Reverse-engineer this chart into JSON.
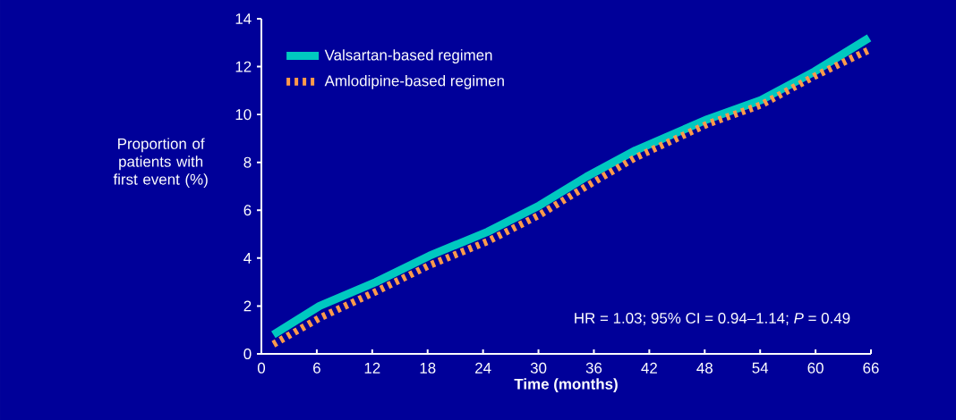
{
  "chart_data": {
    "type": "line",
    "xlabel": "Time (months)",
    "ylabel": "Proportion of patients with first event (%)",
    "x": [
      1.3,
      6.3,
      12.4,
      18.2,
      24.5,
      30.1,
      35.2,
      40.5,
      48.3,
      54.1,
      59.9,
      65.8
    ],
    "series": [
      {
        "name": "Valsartan-based regimen",
        "color": "#00c8c0",
        "line_style": "solid",
        "values": [
          0.8,
          2.0,
          3.0,
          4.1,
          5.1,
          6.2,
          7.4,
          8.5,
          9.8,
          10.6,
          11.8,
          13.2
        ]
      },
      {
        "name": "Amlodipine-based regimen",
        "color": "#ff9a4a",
        "line_style": "dashed",
        "values": [
          0.4,
          1.5,
          2.6,
          3.7,
          4.7,
          5.8,
          7.0,
          8.2,
          9.6,
          10.4,
          11.6,
          12.7
        ]
      }
    ],
    "xlim": [
      0,
      66
    ],
    "xticks": [
      0,
      6,
      12,
      18,
      24,
      30,
      36,
      42,
      48,
      54,
      60,
      66
    ],
    "ylim": [
      0,
      14
    ],
    "yticks": [
      0,
      2,
      4,
      6,
      8,
      10,
      12,
      14
    ],
    "annotations": [
      "HR = 1.03; 95% CI = 0.94–1.14; *P* = 0.49"
    ],
    "legend": "top left",
    "marker": "none",
    "grid": false
  }
}
